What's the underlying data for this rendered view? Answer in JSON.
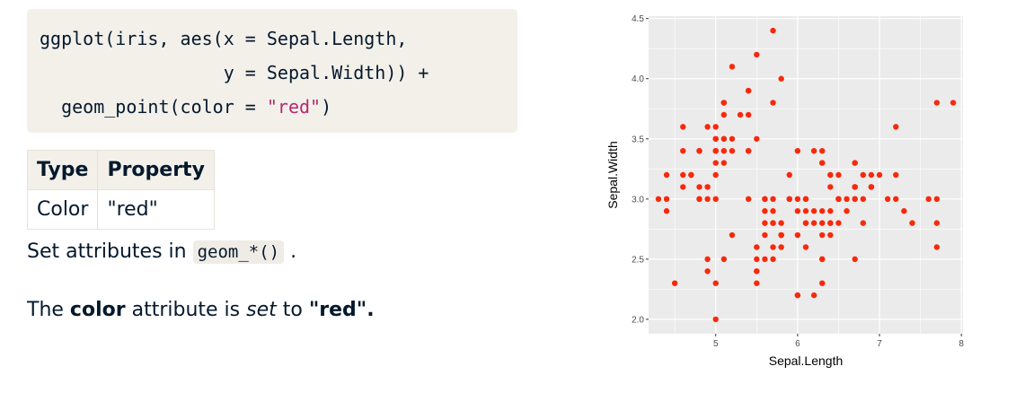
{
  "code": {
    "line1": "ggplot(iris, aes(x = Sepal.Length,",
    "line2": "                 y = Sepal.Width)) +",
    "line3_prefix": "  geom_point(color = ",
    "line3_string": "\"red\"",
    "line3_suffix": ")"
  },
  "table": {
    "headers": [
      "Type",
      "Property"
    ],
    "rows": [
      [
        "Color",
        "\"red\""
      ]
    ]
  },
  "text": {
    "set_attr_prefix": "Set attributes in ",
    "set_attr_code": "geom_*()",
    "set_attr_suffix": " .",
    "color_p1": "The ",
    "color_bold": "color",
    "color_p2": " attribute is ",
    "color_italic": "set",
    "color_p3": " to ",
    "color_value": "\"red\"."
  },
  "chart_data": {
    "type": "scatter",
    "xlabel": "Sepal.Length",
    "ylabel": "Sepal.Width",
    "xlim": [
      4.18,
      8.02
    ],
    "ylim": [
      1.88,
      4.52
    ],
    "xticks": [
      5,
      6,
      7,
      8
    ],
    "yticks": [
      2.0,
      2.5,
      3.0,
      3.5,
      4.0,
      4.5
    ],
    "point_color": "#f8290b",
    "panel_background": "#ebebeb",
    "grid": true,
    "x": [
      5.1,
      4.9,
      4.7,
      4.6,
      5.0,
      5.4,
      4.6,
      5.0,
      4.4,
      4.9,
      5.4,
      4.8,
      4.8,
      4.3,
      5.8,
      5.7,
      5.4,
      5.1,
      5.7,
      5.1,
      5.4,
      5.1,
      4.6,
      5.1,
      4.8,
      5.0,
      5.0,
      5.2,
      5.2,
      4.7,
      4.8,
      5.4,
      5.2,
      5.5,
      4.9,
      5.0,
      5.5,
      4.9,
      4.4,
      5.1,
      5.0,
      4.5,
      4.4,
      5.0,
      5.1,
      4.8,
      5.1,
      4.6,
      5.3,
      5.0,
      7.0,
      6.4,
      6.9,
      5.5,
      6.5,
      5.7,
      6.3,
      4.9,
      6.6,
      5.2,
      5.0,
      5.9,
      6.0,
      6.1,
      5.6,
      6.7,
      5.6,
      5.8,
      6.2,
      5.6,
      5.9,
      6.1,
      6.3,
      6.1,
      6.4,
      6.6,
      6.8,
      6.7,
      6.0,
      5.7,
      5.5,
      5.5,
      5.8,
      6.0,
      5.4,
      6.0,
      6.7,
      6.3,
      5.6,
      5.5,
      5.5,
      6.1,
      5.8,
      5.0,
      5.6,
      5.7,
      5.7,
      6.2,
      5.1,
      5.7,
      6.3,
      5.8,
      7.1,
      6.3,
      6.5,
      7.6,
      4.9,
      7.3,
      6.7,
      7.2,
      6.5,
      6.4,
      6.8,
      5.7,
      5.8,
      6.4,
      6.5,
      7.7,
      7.7,
      6.0,
      6.9,
      5.6,
      7.7,
      6.3,
      6.7,
      7.2,
      6.2,
      6.1,
      6.4,
      7.2,
      7.4,
      7.9,
      6.4,
      6.3,
      6.1,
      7.7,
      6.3,
      6.4,
      6.0,
      6.9,
      6.7,
      6.9,
      5.8,
      6.8,
      6.7,
      6.7,
      6.3,
      6.5,
      6.2,
      5.9
    ],
    "y": [
      3.5,
      3.0,
      3.2,
      3.1,
      3.6,
      3.9,
      3.4,
      3.4,
      2.9,
      3.1,
      3.7,
      3.4,
      3.0,
      3.0,
      4.0,
      4.4,
      3.9,
      3.5,
      3.8,
      3.8,
      3.4,
      3.7,
      3.6,
      3.3,
      3.4,
      3.0,
      3.4,
      3.5,
      3.4,
      3.2,
      3.1,
      3.4,
      4.1,
      4.2,
      3.1,
      3.2,
      3.5,
      3.6,
      3.0,
      3.4,
      3.5,
      2.3,
      3.2,
      3.5,
      3.8,
      3.0,
      3.8,
      3.2,
      3.7,
      3.3,
      3.2,
      3.2,
      3.1,
      2.3,
      2.8,
      2.8,
      3.3,
      2.4,
      2.9,
      2.7,
      2.0,
      3.0,
      2.2,
      2.9,
      2.9,
      3.1,
      3.0,
      2.7,
      2.2,
      2.5,
      3.2,
      2.8,
      2.5,
      2.8,
      2.9,
      3.0,
      2.8,
      3.0,
      2.9,
      2.6,
      2.4,
      2.4,
      2.7,
      2.7,
      3.0,
      3.4,
      3.1,
      2.3,
      3.0,
      2.5,
      2.6,
      3.0,
      2.6,
      2.3,
      2.7,
      3.0,
      2.9,
      2.9,
      2.5,
      2.8,
      3.3,
      2.7,
      3.0,
      2.9,
      3.0,
      3.0,
      2.5,
      2.9,
      2.5,
      3.6,
      3.2,
      2.7,
      3.0,
      2.5,
      2.8,
      3.2,
      3.0,
      3.8,
      2.6,
      2.2,
      3.2,
      2.8,
      2.8,
      2.7,
      3.3,
      3.2,
      2.8,
      3.0,
      2.8,
      3.0,
      2.8,
      3.8,
      2.8,
      2.8,
      2.6,
      3.0,
      3.4,
      3.1,
      3.0,
      3.1,
      3.1,
      3.1,
      2.7,
      3.2,
      3.3,
      3.0,
      2.5,
      3.0,
      3.4,
      3.0
    ]
  }
}
